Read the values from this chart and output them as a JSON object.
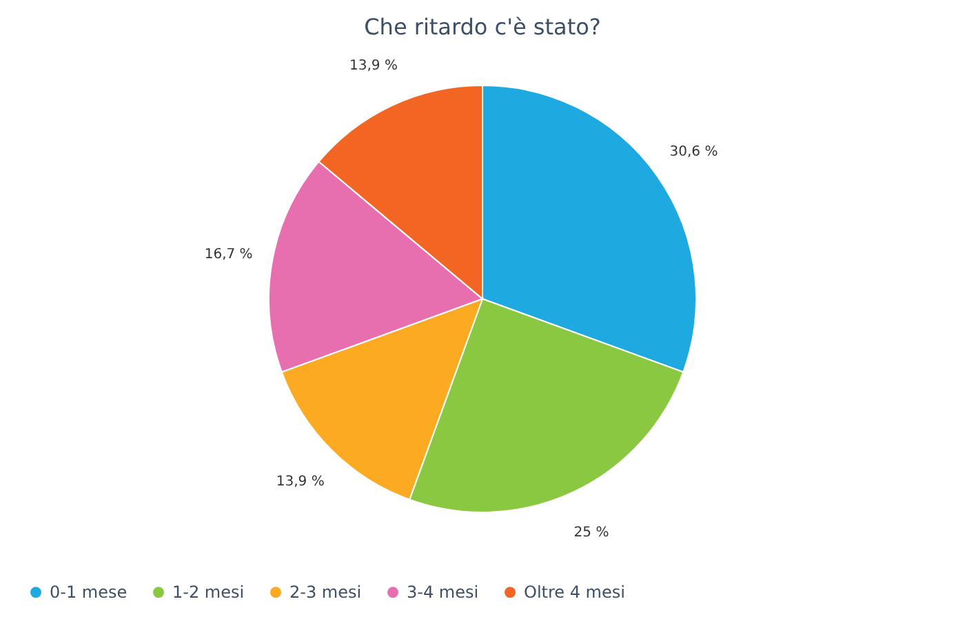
{
  "chart_data": {
    "type": "pie",
    "title": "Che ritardo c'è stato?",
    "categories": [
      "0-1 mese",
      "1-2 mesi",
      "2-3 mesi",
      "3-4 mesi",
      "Oltre 4 mesi"
    ],
    "values": [
      30.6,
      25,
      13.9,
      16.7,
      13.9
    ],
    "value_labels": [
      "30,6 %",
      "25 %",
      "13,9 %",
      "16,7 %",
      "13,9 %"
    ],
    "colors": [
      "#1eaae1",
      "#8bc842",
      "#fcaa22",
      "#e76fb0",
      "#f26522"
    ],
    "legend": "bottom left"
  }
}
